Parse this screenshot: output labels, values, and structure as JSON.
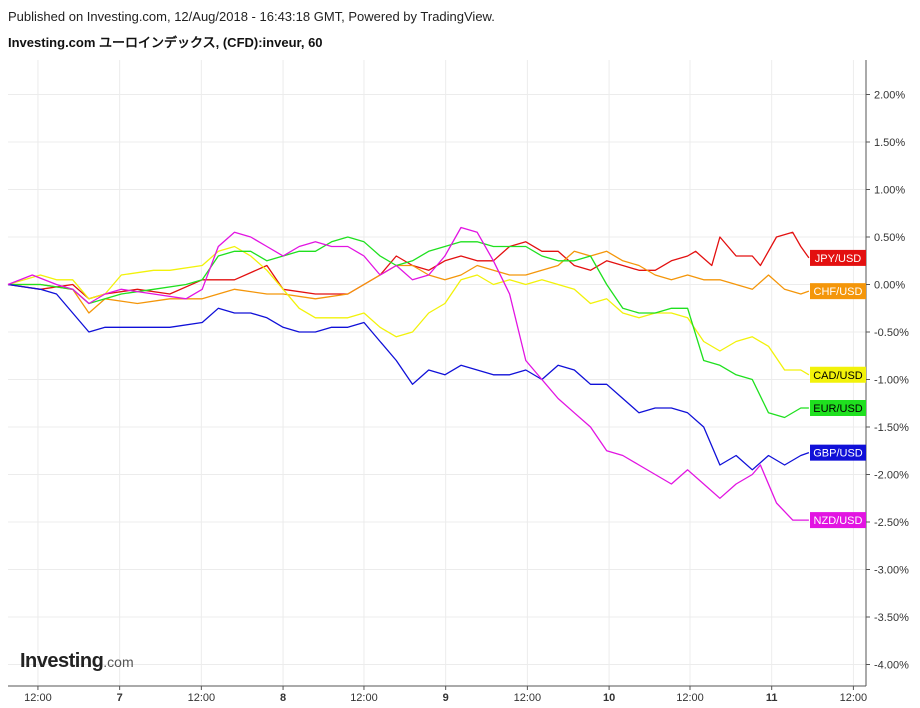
{
  "header": {
    "published": "Published on Investing.com, 12/Aug/2018 - 16:43:18 GMT, Powered by TradingView.",
    "title": "Investing.com ユーロインデックス, (CFD):inveur, 60"
  },
  "logo": {
    "main": "Investing",
    "tld": ".com"
  },
  "chart_data": {
    "type": "line",
    "title": "Investing.com ユーロインデックス, (CFD):inveur, 60",
    "ylim": [
      -4.2,
      2.4
    ],
    "xlim": [
      0,
      100
    ],
    "grid": true,
    "y_ticks": [
      2.0,
      1.5,
      1.0,
      0.5,
      0.0,
      -0.5,
      -1.0,
      -1.5,
      -2.0,
      -2.5,
      -3.0,
      -3.5,
      -4.0
    ],
    "y_tick_labels": [
      "2.00%",
      "1.50%",
      "1.00%",
      "0.50%",
      "0.00%",
      "-0.50%",
      "-1.00%",
      "-1.50%",
      "-2.00%",
      "-2.50%",
      "-3.00%",
      "-3.50%",
      "-4.00%"
    ],
    "x_ticks": [
      {
        "x": 3.7,
        "label": "12:00",
        "bold": false
      },
      {
        "x": 13.8,
        "label": "7",
        "bold": true
      },
      {
        "x": 23.9,
        "label": "12:00",
        "bold": false
      },
      {
        "x": 34.0,
        "label": "8",
        "bold": true
      },
      {
        "x": 44.0,
        "label": "12:00",
        "bold": false
      },
      {
        "x": 54.1,
        "label": "9",
        "bold": true
      },
      {
        "x": 64.2,
        "label": "12:00",
        "bold": false
      },
      {
        "x": 74.3,
        "label": "10",
        "bold": true
      },
      {
        "x": 84.3,
        "label": "12:00",
        "bold": false
      },
      {
        "x": 94.4,
        "label": "11",
        "bold": true
      },
      {
        "x": 104.5,
        "label": "12:00",
        "bold": false
      }
    ],
    "series": [
      {
        "name": "JPY/USD",
        "color": "#e31010",
        "label_value": 0.28,
        "points": [
          [
            0,
            0
          ],
          [
            4,
            -0.05
          ],
          [
            8,
            0
          ],
          [
            10,
            -0.15
          ],
          [
            12,
            -0.1
          ],
          [
            16,
            -0.05
          ],
          [
            20,
            -0.1
          ],
          [
            24,
            0.05
          ],
          [
            28,
            0.05
          ],
          [
            32,
            0.2
          ],
          [
            34,
            -0.05
          ],
          [
            38,
            -0.1
          ],
          [
            42,
            -0.1
          ],
          [
            46,
            0.1
          ],
          [
            48,
            0.3
          ],
          [
            50,
            0.2
          ],
          [
            52,
            0.15
          ],
          [
            54,
            0.25
          ],
          [
            56,
            0.3
          ],
          [
            58,
            0.25
          ],
          [
            60,
            0.25
          ],
          [
            62,
            0.4
          ],
          [
            64,
            0.45
          ],
          [
            66,
            0.35
          ],
          [
            68,
            0.35
          ],
          [
            70,
            0.2
          ],
          [
            72,
            0.15
          ],
          [
            74,
            0.25
          ],
          [
            76,
            0.2
          ],
          [
            78,
            0.15
          ],
          [
            80,
            0.15
          ],
          [
            82,
            0.25
          ],
          [
            84,
            0.3
          ],
          [
            85,
            0.35
          ],
          [
            87,
            0.2
          ],
          [
            88,
            0.5
          ],
          [
            90,
            0.3
          ],
          [
            92,
            0.3
          ],
          [
            93,
            0.2
          ],
          [
            95,
            0.5
          ],
          [
            97,
            0.55
          ],
          [
            98,
            0.4
          ],
          [
            99,
            0.28
          ]
        ]
      },
      {
        "name": "CHF/USD",
        "color": "#f4960a",
        "label_value": -0.07,
        "points": [
          [
            0,
            0
          ],
          [
            4,
            0
          ],
          [
            8,
            -0.05
          ],
          [
            10,
            -0.3
          ],
          [
            12,
            -0.15
          ],
          [
            16,
            -0.2
          ],
          [
            20,
            -0.15
          ],
          [
            24,
            -0.15
          ],
          [
            28,
            -0.05
          ],
          [
            32,
            -0.1
          ],
          [
            34,
            -0.1
          ],
          [
            38,
            -0.15
          ],
          [
            42,
            -0.1
          ],
          [
            46,
            0.1
          ],
          [
            48,
            0.2
          ],
          [
            50,
            0.2
          ],
          [
            52,
            0.1
          ],
          [
            54,
            0.05
          ],
          [
            56,
            0.1
          ],
          [
            58,
            0.2
          ],
          [
            60,
            0.15
          ],
          [
            62,
            0.1
          ],
          [
            64,
            0.1
          ],
          [
            66,
            0.15
          ],
          [
            68,
            0.2
          ],
          [
            70,
            0.35
          ],
          [
            72,
            0.3
          ],
          [
            74,
            0.35
          ],
          [
            76,
            0.25
          ],
          [
            78,
            0.2
          ],
          [
            80,
            0.1
          ],
          [
            82,
            0.05
          ],
          [
            84,
            0.1
          ],
          [
            86,
            0.05
          ],
          [
            88,
            0.05
          ],
          [
            90,
            0.0
          ],
          [
            92,
            -0.05
          ],
          [
            94,
            0.1
          ],
          [
            96,
            -0.05
          ],
          [
            98,
            -0.1
          ],
          [
            99,
            -0.07
          ]
        ]
      },
      {
        "name": "CAD/USD",
        "color": "#f2f20a",
        "label_value": -0.95,
        "points": [
          [
            0,
            0
          ],
          [
            4,
            0.1
          ],
          [
            6,
            0.05
          ],
          [
            8,
            0.05
          ],
          [
            10,
            -0.15
          ],
          [
            12,
            -0.1
          ],
          [
            14,
            0.1
          ],
          [
            18,
            0.15
          ],
          [
            20,
            0.15
          ],
          [
            24,
            0.2
          ],
          [
            26,
            0.35
          ],
          [
            28,
            0.4
          ],
          [
            30,
            0.3
          ],
          [
            32,
            0.15
          ],
          [
            34,
            -0.05
          ],
          [
            36,
            -0.25
          ],
          [
            38,
            -0.35
          ],
          [
            42,
            -0.35
          ],
          [
            44,
            -0.3
          ],
          [
            46,
            -0.45
          ],
          [
            48,
            -0.55
          ],
          [
            50,
            -0.5
          ],
          [
            52,
            -0.3
          ],
          [
            54,
            -0.2
          ],
          [
            56,
            0.05
          ],
          [
            58,
            0.1
          ],
          [
            60,
            0.0
          ],
          [
            62,
            0.05
          ],
          [
            64,
            0.0
          ],
          [
            66,
            0.05
          ],
          [
            68,
            0.0
          ],
          [
            70,
            -0.05
          ],
          [
            72,
            -0.2
          ],
          [
            74,
            -0.15
          ],
          [
            76,
            -0.3
          ],
          [
            78,
            -0.35
          ],
          [
            80,
            -0.3
          ],
          [
            82,
            -0.3
          ],
          [
            84,
            -0.35
          ],
          [
            86,
            -0.6
          ],
          [
            88,
            -0.7
          ],
          [
            90,
            -0.6
          ],
          [
            92,
            -0.55
          ],
          [
            94,
            -0.65
          ],
          [
            96,
            -0.9
          ],
          [
            98,
            -0.9
          ],
          [
            99,
            -0.95
          ]
        ]
      },
      {
        "name": "EUR/USD",
        "color": "#1fe01f",
        "label_value": -1.3,
        "points": [
          [
            0,
            0
          ],
          [
            4,
            0
          ],
          [
            8,
            -0.05
          ],
          [
            10,
            -0.2
          ],
          [
            12,
            -0.15
          ],
          [
            14,
            -0.1
          ],
          [
            18,
            -0.05
          ],
          [
            22,
            0.0
          ],
          [
            24,
            0.05
          ],
          [
            26,
            0.3
          ],
          [
            28,
            0.35
          ],
          [
            30,
            0.35
          ],
          [
            32,
            0.25
          ],
          [
            34,
            0.3
          ],
          [
            36,
            0.35
          ],
          [
            38,
            0.35
          ],
          [
            40,
            0.45
          ],
          [
            42,
            0.5
          ],
          [
            44,
            0.45
          ],
          [
            46,
            0.3
          ],
          [
            48,
            0.2
          ],
          [
            50,
            0.25
          ],
          [
            52,
            0.35
          ],
          [
            54,
            0.4
          ],
          [
            56,
            0.45
          ],
          [
            58,
            0.45
          ],
          [
            60,
            0.4
          ],
          [
            62,
            0.4
          ],
          [
            64,
            0.4
          ],
          [
            66,
            0.3
          ],
          [
            68,
            0.25
          ],
          [
            70,
            0.25
          ],
          [
            72,
            0.3
          ],
          [
            74,
            0.0
          ],
          [
            76,
            -0.25
          ],
          [
            78,
            -0.3
          ],
          [
            80,
            -0.3
          ],
          [
            82,
            -0.25
          ],
          [
            84,
            -0.25
          ],
          [
            86,
            -0.8
          ],
          [
            88,
            -0.85
          ],
          [
            90,
            -0.95
          ],
          [
            92,
            -1.0
          ],
          [
            94,
            -1.35
          ],
          [
            96,
            -1.4
          ],
          [
            98,
            -1.3
          ],
          [
            99,
            -1.3
          ]
        ]
      },
      {
        "name": "GBP/USD",
        "color": "#1010d8",
        "label_value": -1.77,
        "points": [
          [
            0,
            0
          ],
          [
            4,
            -0.05
          ],
          [
            6,
            -0.1
          ],
          [
            8,
            -0.3
          ],
          [
            10,
            -0.5
          ],
          [
            12,
            -0.45
          ],
          [
            16,
            -0.45
          ],
          [
            20,
            -0.45
          ],
          [
            24,
            -0.4
          ],
          [
            26,
            -0.25
          ],
          [
            28,
            -0.3
          ],
          [
            30,
            -0.3
          ],
          [
            32,
            -0.35
          ],
          [
            34,
            -0.45
          ],
          [
            36,
            -0.5
          ],
          [
            38,
            -0.5
          ],
          [
            40,
            -0.45
          ],
          [
            42,
            -0.45
          ],
          [
            44,
            -0.4
          ],
          [
            46,
            -0.6
          ],
          [
            48,
            -0.8
          ],
          [
            50,
            -1.05
          ],
          [
            52,
            -0.9
          ],
          [
            54,
            -0.95
          ],
          [
            56,
            -0.85
          ],
          [
            58,
            -0.9
          ],
          [
            60,
            -0.95
          ],
          [
            62,
            -0.95
          ],
          [
            64,
            -0.9
          ],
          [
            66,
            -1.0
          ],
          [
            68,
            -0.85
          ],
          [
            70,
            -0.9
          ],
          [
            72,
            -1.05
          ],
          [
            74,
            -1.05
          ],
          [
            76,
            -1.2
          ],
          [
            78,
            -1.35
          ],
          [
            80,
            -1.3
          ],
          [
            82,
            -1.3
          ],
          [
            84,
            -1.35
          ],
          [
            86,
            -1.5
          ],
          [
            88,
            -1.9
          ],
          [
            90,
            -1.8
          ],
          [
            92,
            -1.95
          ],
          [
            94,
            -1.8
          ],
          [
            96,
            -1.9
          ],
          [
            98,
            -1.8
          ],
          [
            99,
            -1.77
          ]
        ]
      },
      {
        "name": "NZD/USD",
        "color": "#e214e2",
        "label_value": -2.48,
        "points": [
          [
            0,
            0
          ],
          [
            3,
            0.1
          ],
          [
            6,
            0.0
          ],
          [
            8,
            -0.05
          ],
          [
            10,
            -0.2
          ],
          [
            12,
            -0.1
          ],
          [
            14,
            -0.05
          ],
          [
            18,
            -0.1
          ],
          [
            22,
            -0.15
          ],
          [
            24,
            -0.05
          ],
          [
            26,
            0.4
          ],
          [
            28,
            0.55
          ],
          [
            30,
            0.5
          ],
          [
            32,
            0.4
          ],
          [
            34,
            0.3
          ],
          [
            36,
            0.4
          ],
          [
            38,
            0.45
          ],
          [
            40,
            0.4
          ],
          [
            42,
            0.4
          ],
          [
            44,
            0.3
          ],
          [
            46,
            0.1
          ],
          [
            48,
            0.2
          ],
          [
            50,
            0.05
          ],
          [
            52,
            0.1
          ],
          [
            54,
            0.3
          ],
          [
            56,
            0.6
          ],
          [
            58,
            0.55
          ],
          [
            60,
            0.25
          ],
          [
            62,
            -0.1
          ],
          [
            64,
            -0.8
          ],
          [
            66,
            -1.0
          ],
          [
            68,
            -1.2
          ],
          [
            70,
            -1.35
          ],
          [
            72,
            -1.5
          ],
          [
            74,
            -1.75
          ],
          [
            76,
            -1.8
          ],
          [
            78,
            -1.9
          ],
          [
            80,
            -2.0
          ],
          [
            82,
            -2.1
          ],
          [
            84,
            -1.95
          ],
          [
            86,
            -2.1
          ],
          [
            88,
            -2.25
          ],
          [
            90,
            -2.1
          ],
          [
            92,
            -2.0
          ],
          [
            93,
            -1.9
          ],
          [
            95,
            -2.3
          ],
          [
            97,
            -2.48
          ],
          [
            99,
            -2.48
          ]
        ]
      }
    ]
  }
}
